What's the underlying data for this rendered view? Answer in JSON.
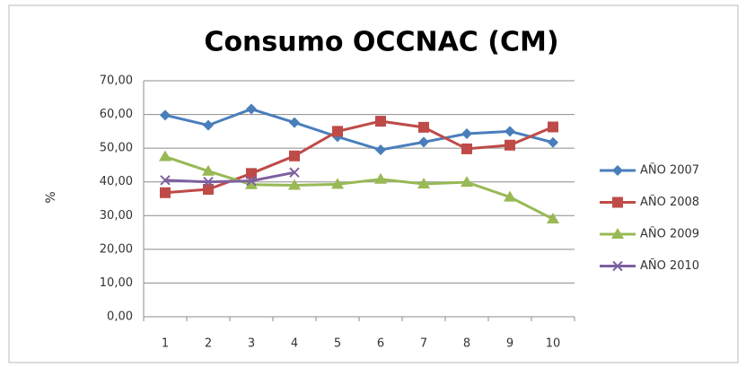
{
  "chart_data": {
    "type": "line",
    "title": "Consumo OCCNAC (CM)",
    "y_label": "%",
    "categories": [
      1,
      2,
      3,
      4,
      5,
      6,
      7,
      8,
      9,
      10
    ],
    "series": [
      {
        "name": "AÑO 2007",
        "color": "#4a7ebb",
        "marker": "diamond",
        "values": [
          59.8,
          56.8,
          61.6,
          57.6,
          53.4,
          49.5,
          51.8,
          54.3,
          55.0,
          51.7
        ]
      },
      {
        "name": "AÑO 2008",
        "color": "#be4b48",
        "marker": "square",
        "values": [
          36.8,
          37.8,
          42.5,
          47.7,
          55.0,
          58.0,
          56.2,
          49.8,
          50.9,
          56.3
        ]
      },
      {
        "name": "AÑO 2009",
        "color": "#98b954",
        "marker": "triangle",
        "values": [
          47.5,
          43.2,
          39.2,
          39.0,
          39.3,
          40.8,
          39.4,
          39.9,
          35.5,
          29.0
        ]
      },
      {
        "name": "AÑO 2010",
        "color": "#7d60a0",
        "marker": "x",
        "values": [
          40.5,
          40.0,
          40.3,
          42.8,
          null,
          null,
          null,
          null,
          null,
          null
        ]
      }
    ],
    "ylim": [
      0,
      70
    ],
    "yticks": [
      {
        "value": 0,
        "label": "0,00"
      },
      {
        "value": 10,
        "label": "10,00"
      },
      {
        "value": 20,
        "label": "20,00"
      },
      {
        "value": 30,
        "label": "30,00"
      },
      {
        "value": 40,
        "label": "40,00"
      },
      {
        "value": 50,
        "label": "50,00"
      },
      {
        "value": 60,
        "label": "60,00"
      },
      {
        "value": 70,
        "label": "70,00"
      }
    ],
    "grid": true,
    "legend": "right"
  }
}
